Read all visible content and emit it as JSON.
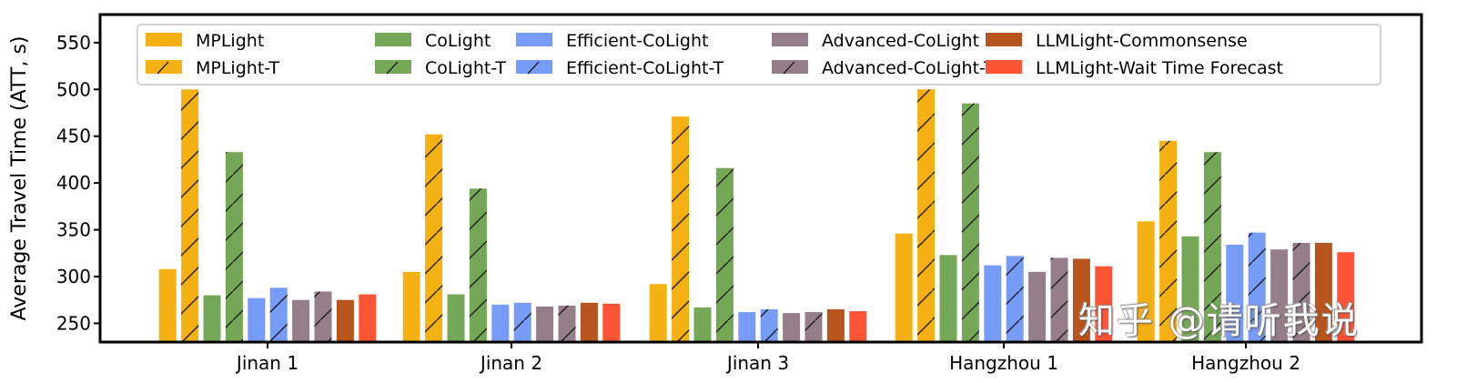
{
  "chart_data": {
    "type": "bar",
    "title": "",
    "xlabel": "",
    "ylabel": "Average Travel Time (ATT, s)",
    "ylim": [
      230,
      580
    ],
    "yticks": [
      250,
      300,
      350,
      400,
      450,
      500,
      550
    ],
    "grid": false,
    "legend_position": "upper center (inside, 5 columns x 2 rows)",
    "categories": [
      "Jinan 1",
      "Jinan 2",
      "Jinan 3",
      "Hangzhou 1",
      "Hangzhou 2"
    ],
    "series": [
      {
        "name": "MPLight",
        "color": "#F5B014",
        "hatch": false,
        "values": [
          308,
          305,
          292,
          346,
          359
        ]
      },
      {
        "name": "MPLight-T",
        "color": "#F5B014",
        "hatch": true,
        "values": [
          500,
          452,
          471,
          500,
          445
        ]
      },
      {
        "name": "CoLight",
        "color": "#75A856",
        "hatch": false,
        "values": [
          280,
          281,
          267,
          323,
          343
        ]
      },
      {
        "name": "CoLight-T",
        "color": "#75A856",
        "hatch": true,
        "values": [
          433,
          394,
          416,
          485,
          433
        ]
      },
      {
        "name": "Efficient-CoLight",
        "color": "#779CF7",
        "hatch": false,
        "values": [
          277,
          270,
          262,
          312,
          334
        ]
      },
      {
        "name": "Efficient-CoLight-T",
        "color": "#779CF7",
        "hatch": true,
        "values": [
          288,
          272,
          265,
          322,
          347
        ]
      },
      {
        "name": "Advanced-CoLight",
        "color": "#957E89",
        "hatch": false,
        "values": [
          275,
          268,
          261,
          305,
          329
        ]
      },
      {
        "name": "Advanced-CoLight-T",
        "color": "#957E89",
        "hatch": true,
        "values": [
          284,
          269,
          262,
          320,
          336
        ]
      },
      {
        "name": "LLMLight-Commonsense",
        "color": "#B8541D",
        "hatch": false,
        "values": [
          275,
          272,
          265,
          319,
          336
        ]
      },
      {
        "name": "LLMLight-Wait Time Forecast",
        "color": "#FD5435",
        "hatch": false,
        "values": [
          281,
          271,
          263,
          311,
          326
        ]
      }
    ]
  },
  "watermark": "知乎 @请听我说"
}
